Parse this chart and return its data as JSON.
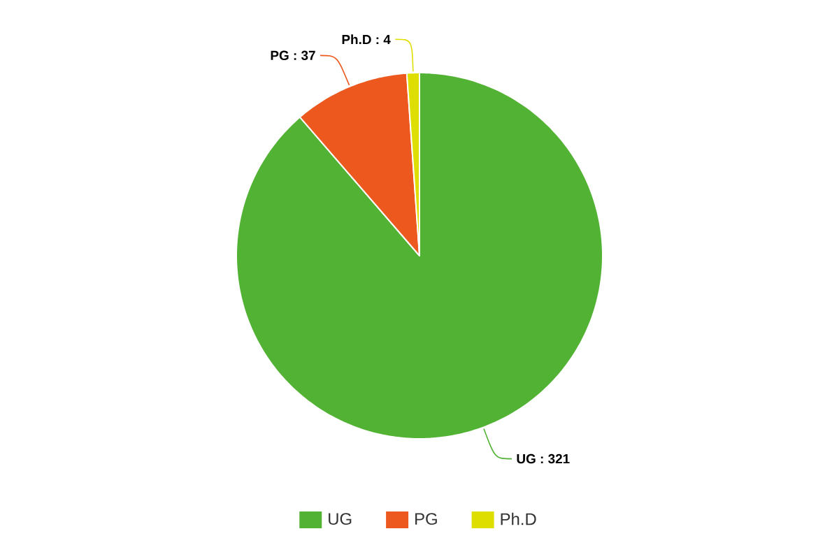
{
  "chart_data": {
    "type": "pie",
    "categories": [
      "UG",
      "PG",
      "Ph.D"
    ],
    "values": [
      321,
      37,
      4
    ],
    "colors": [
      "#52b233",
      "#ed581e",
      "#dede00"
    ],
    "value_labels": [
      "UG : 321",
      "PG : 37",
      "Ph.D : 4"
    ],
    "legend": "bottom"
  }
}
